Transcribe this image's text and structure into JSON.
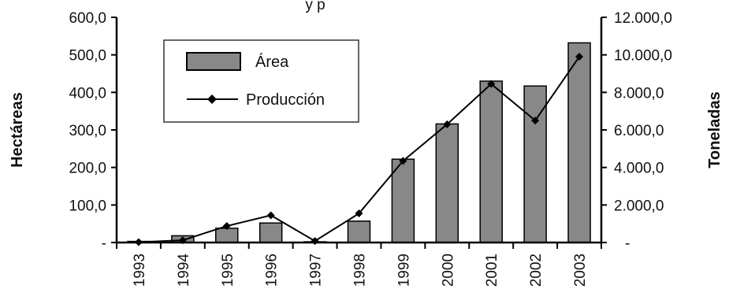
{
  "chart_data": {
    "type": "bar+line",
    "title_fragment": "y p",
    "categories": [
      "1993",
      "1994",
      "1995",
      "1996",
      "1997",
      "1998",
      "1999",
      "2000",
      "2001",
      "2002",
      "2003"
    ],
    "series": [
      {
        "name": "Área",
        "type": "bar",
        "axis": "left",
        "color": "#888888",
        "values": [
          3,
          18,
          38,
          52,
          2,
          57,
          222,
          316,
          430,
          417,
          532
        ]
      },
      {
        "name": "Producción",
        "type": "line",
        "axis": "right",
        "color": "#000000",
        "values": [
          20,
          120,
          880,
          1450,
          80,
          1550,
          4350,
          6300,
          8450,
          6500,
          9900
        ]
      }
    ],
    "y_left": {
      "label": "Hectáreas",
      "ylim": [
        0,
        600
      ],
      "ticks": [
        0,
        100,
        200,
        300,
        400,
        500,
        600
      ],
      "tick_labels": [
        "-",
        "100,0",
        "200,0",
        "300,0",
        "400,0",
        "500,0",
        "600,0"
      ]
    },
    "y_right": {
      "label": "Toneladas",
      "ylim": [
        0,
        12000
      ],
      "ticks": [
        0,
        2000,
        4000,
        6000,
        8000,
        10000,
        12000
      ],
      "tick_labels": [
        "-",
        "2.000,0",
        "4.000,0",
        "6.000,0",
        "8.000,0",
        "10.000,0",
        "12.000,0"
      ]
    },
    "legend": {
      "position": "top-left",
      "entries": [
        "Área",
        "Producción"
      ]
    },
    "grid": false
  }
}
